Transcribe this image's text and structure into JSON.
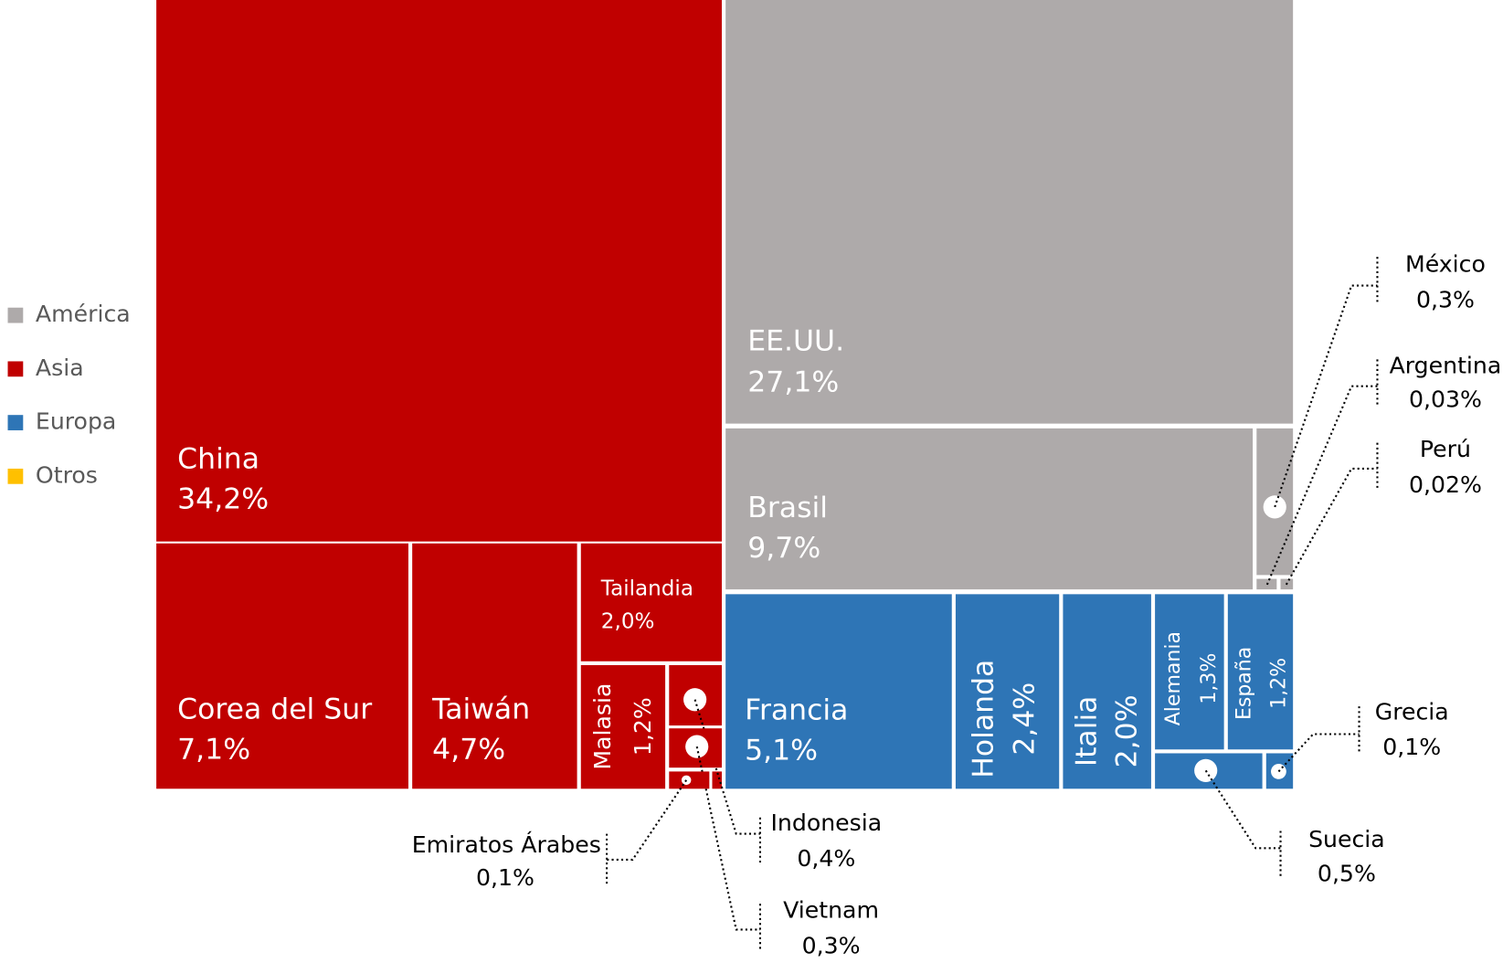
{
  "chart_data": {
    "type": "treemap",
    "legend": {
      "position": "left"
    },
    "series": [
      {
        "name": "América",
        "color": "#aeaaaa",
        "categories": [
          "EE.UU.",
          "Brasil",
          "México",
          "Argentina",
          "Perú"
        ],
        "values": [
          27.1,
          9.7,
          0.3,
          0.03,
          0.02
        ],
        "value_labels": [
          "27,1%",
          "9,7%",
          "0,3%",
          "0,03%",
          "0,02%"
        ]
      },
      {
        "name": "Asia",
        "color": "#c00000",
        "categories": [
          "China",
          "Corea del Sur",
          "Taiwán",
          "Tailandia",
          "Malasia",
          "Indonesia",
          "Vietnam",
          "Emiratos Árabes"
        ],
        "values": [
          34.2,
          7.1,
          4.7,
          2.0,
          1.2,
          0.4,
          0.3,
          0.1
        ],
        "value_labels": [
          "34,2%",
          "7,1%",
          "4,7%",
          "2,0%",
          "1,2%",
          "0,4%",
          "0,3%",
          "0,1%"
        ]
      },
      {
        "name": "Europa",
        "color": "#2e75b6",
        "categories": [
          "Francia",
          "Holanda",
          "Italia",
          "Alemania",
          "España",
          "Suecia",
          "Grecia"
        ],
        "values": [
          5.1,
          2.4,
          2.0,
          1.3,
          1.2,
          0.5,
          0.1
        ],
        "value_labels": [
          "5,1%",
          "2,4%",
          "2,0%",
          "1,3%",
          "1,2%",
          "0,5%",
          "0,1%"
        ]
      },
      {
        "name": "Otros",
        "color": "#ffc000",
        "categories": [],
        "values": [],
        "value_labels": []
      }
    ]
  }
}
